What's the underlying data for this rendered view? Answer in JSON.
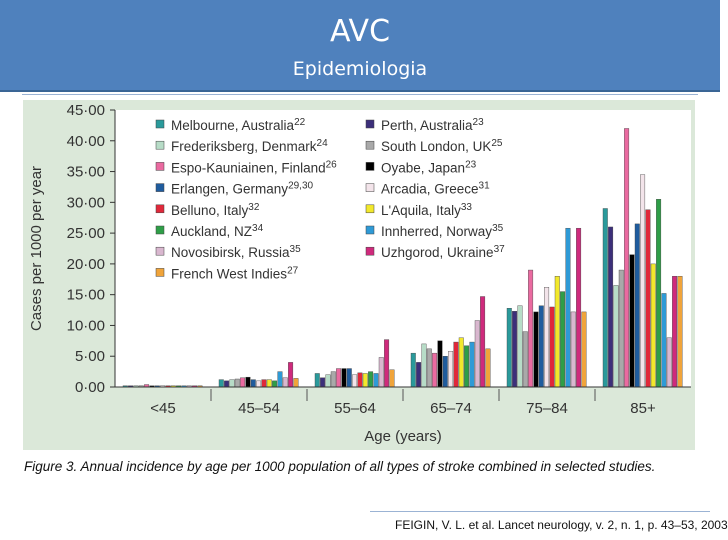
{
  "header": {
    "title": "AVC",
    "subtitle": "Epidemiologia"
  },
  "caption": "Figure 3. Annual incidence by age per 1000 population of all types of stroke combined in selected studies.",
  "reference": "FEIGIN, V. L. et al. Lancet neurology, v. 2, n. 1, p. 43–53, 2003",
  "chart_data": {
    "type": "bar",
    "xlabel": "Age (years)",
    "ylabel": "Cases per 1000 per year",
    "ylim": [
      0,
      45
    ],
    "yticks": [
      "0·00",
      "5·00",
      "10·00",
      "15·00",
      "20·00",
      "25·00",
      "30·00",
      "35·00",
      "40·00",
      "45·00"
    ],
    "categories": [
      "<45",
      "45–54",
      "55–64",
      "65–74",
      "75–84",
      "85+"
    ],
    "legend_position": "top",
    "series": [
      {
        "name": "Melbourne, Australia",
        "sup": "22",
        "color": "#2a9a9b",
        "values": [
          0.2,
          1.2,
          2.2,
          5.5,
          12.8,
          29.0
        ]
      },
      {
        "name": "Perth, Australia",
        "sup": "23",
        "color": "#3c2f7a",
        "values": [
          0.2,
          1.0,
          1.5,
          4.0,
          12.3,
          26.0
        ]
      },
      {
        "name": "Frederiksberg, Denmark",
        "sup": "24",
        "color": "#b7dcc7",
        "values": [
          0.2,
          1.2,
          2.0,
          7.0,
          13.2,
          16.5
        ]
      },
      {
        "name": "South London, UK",
        "sup": "25",
        "color": "#a9a9a9",
        "values": [
          0.2,
          1.3,
          2.5,
          6.2,
          9.0,
          19.0
        ]
      },
      {
        "name": "Espo-Kauniainen, Finland",
        "sup": "26",
        "color": "#ea6aa0",
        "values": [
          0.4,
          1.5,
          3.0,
          5.5,
          19.0,
          42.0
        ]
      },
      {
        "name": "Oyabe, Japan",
        "sup": "23",
        "color": "#000000",
        "values": [
          0.2,
          1.6,
          3.0,
          7.5,
          12.2,
          21.5
        ]
      },
      {
        "name": "Erlangen, Germany",
        "sup": "29,30",
        "color": "#1f5c9e",
        "values": [
          0.2,
          1.2,
          3.0,
          5.0,
          13.2,
          26.5
        ]
      },
      {
        "name": "Arcadia, Greece",
        "sup": "31",
        "color": "#f3e4ea",
        "values": [
          0.2,
          1.0,
          2.0,
          5.8,
          16.2,
          34.5
        ]
      },
      {
        "name": "Belluno, Italy",
        "sup": "32",
        "color": "#e0283a",
        "values": [
          0.2,
          1.2,
          2.3,
          7.3,
          13.0,
          28.8
        ]
      },
      {
        "name": "L'Aquila, Italy",
        "sup": "33",
        "color": "#f2e82c",
        "values": [
          0.2,
          1.2,
          2.2,
          8.0,
          18.0,
          20.0
        ]
      },
      {
        "name": "Auckland, NZ",
        "sup": "34",
        "color": "#2e9e47",
        "values": [
          0.2,
          1.0,
          2.5,
          6.7,
          15.5,
          30.5
        ]
      },
      {
        "name": "Innherred, Norway",
        "sup": "35",
        "color": "#2e9ad6",
        "values": [
          0.2,
          2.5,
          2.2,
          7.3,
          25.8,
          15.2
        ]
      },
      {
        "name": "Novosibirsk, Russia",
        "sup": "35",
        "color": "#d9b7cf",
        "values": [
          0.2,
          1.5,
          4.8,
          10.8,
          12.2,
          8.0
        ]
      },
      {
        "name": "Uzhgorod, Ukraine",
        "sup": "37",
        "color": "#cf2a7c",
        "values": [
          0.2,
          4.0,
          7.7,
          14.7,
          25.8,
          18.0
        ]
      },
      {
        "name": "French West Indies",
        "sup": "27",
        "color": "#f0a43a",
        "values": [
          0.2,
          1.4,
          2.8,
          6.2,
          12.2,
          18.0
        ]
      }
    ]
  }
}
